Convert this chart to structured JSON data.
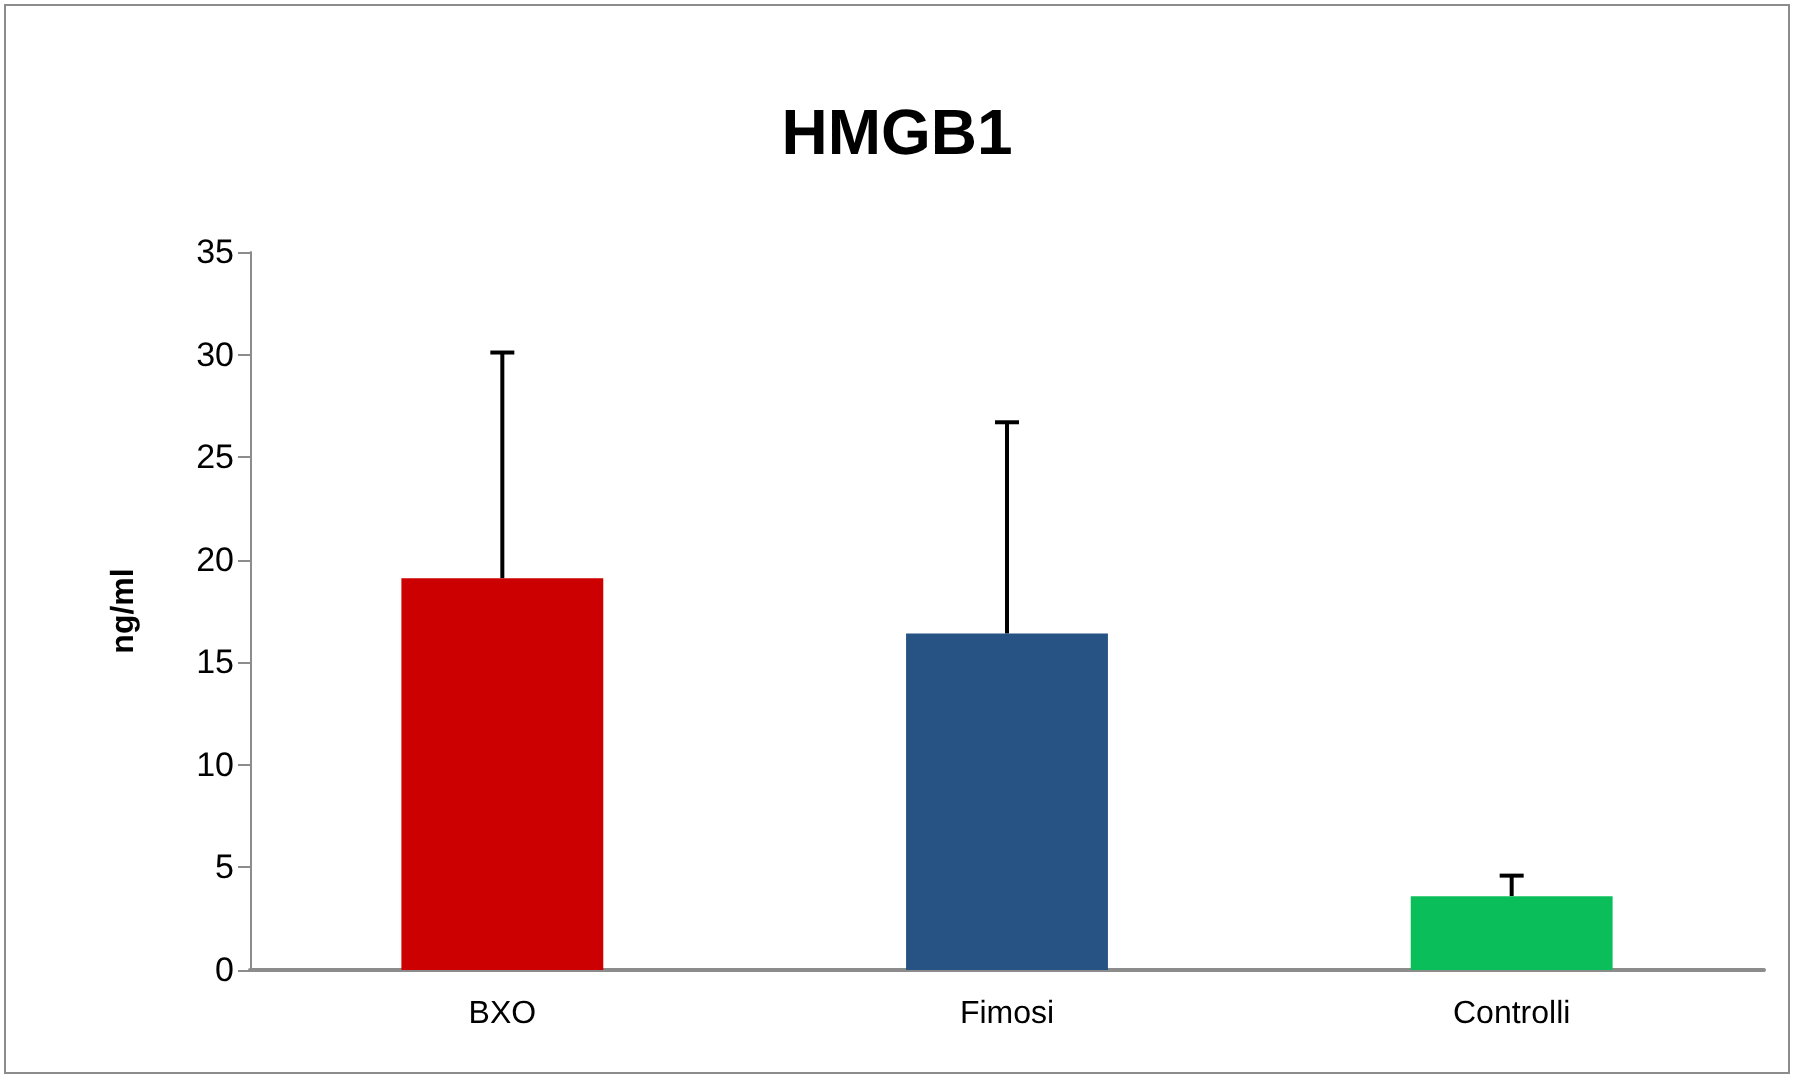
{
  "chart_data": {
    "type": "bar",
    "title": "HMGB1",
    "ylabel": "ng/ml",
    "categories": [
      "BXO",
      "Fimosi",
      "Controlli"
    ],
    "values": [
      19.1,
      16.4,
      3.6
    ],
    "colors": [
      "#cc0000",
      "#265284",
      "#0abf5a"
    ],
    "errors": [
      [
        19.1,
        30.1
      ],
      [
        16.4,
        26.7
      ],
      [
        3.6,
        4.6
      ]
    ],
    "ylim": [
      0,
      35
    ],
    "yticks": [
      0,
      5,
      10,
      15,
      20,
      25,
      30,
      35
    ],
    "grid": false
  }
}
